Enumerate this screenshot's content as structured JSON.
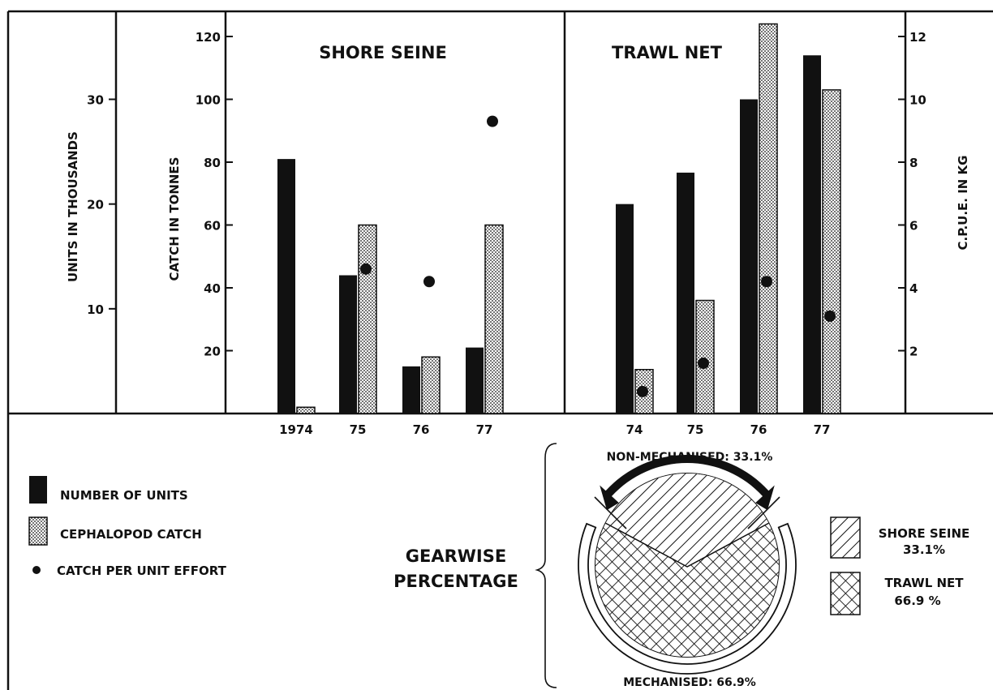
{
  "chart_data": {
    "type": "bar",
    "axes": {
      "units_label": "UNITS IN THOUSANDS",
      "units_ticks": [
        "10",
        "20",
        "30"
      ],
      "catch_label": "CATCH IN TONNES",
      "catch_ticks": [
        "20",
        "40",
        "60",
        "80",
        "100",
        "120"
      ],
      "cpue_label": "C.P.U.E. IN KG",
      "cpue_ticks": [
        "2",
        "4",
        "6",
        "8",
        "10",
        "12"
      ],
      "catch_ylim": [
        0,
        128
      ],
      "units_ylim": [
        0,
        38.4
      ],
      "cpue_ylim": [
        0,
        12.8
      ]
    },
    "panels": [
      {
        "title": "SHORE SEINE",
        "categories": [
          "1974",
          "75",
          "76",
          "77"
        ],
        "series": [
          {
            "name": "NUMBER OF UNITS",
            "unit": "thousands",
            "values": [
              24.3,
              13.2,
              4.5,
              6.3
            ]
          },
          {
            "name": "CEPHALOPOD CATCH",
            "unit": "tonnes",
            "values": [
              2,
              60,
              18,
              60
            ]
          },
          {
            "name": "CATCH PER UNIT EFFORT",
            "unit": "kg",
            "values": [
              null,
              4.6,
              4.2,
              9.3
            ]
          }
        ]
      },
      {
        "title": "TRAWL NET",
        "categories": [
          "74",
          "75",
          "76",
          "77"
        ],
        "series": [
          {
            "name": "NUMBER OF UNITS",
            "unit": "thousands",
            "values": [
              20,
              23,
              30,
              34.2
            ]
          },
          {
            "name": "CEPHALOPOD CATCH",
            "unit": "tonnes",
            "values": [
              14,
              36,
              124,
              103
            ]
          },
          {
            "name": "CATCH PER UNIT EFFORT",
            "unit": "kg",
            "values": [
              0.7,
              1.6,
              4.2,
              3.1
            ]
          }
        ]
      }
    ],
    "legend": [
      {
        "key": "units",
        "label": "NUMBER OF UNITS"
      },
      {
        "key": "catch",
        "label": "CEPHALOPOD CATCH"
      },
      {
        "key": "cpue",
        "label": "CATCH PER UNIT EFFORT"
      }
    ],
    "pie": {
      "title_line1": "GEARWISE",
      "title_line2": "PERCENTAGE",
      "top_label": "NON-MECHANISED: 33.1%",
      "bottom_label": "MECHANISED: 66.9%",
      "slices": [
        {
          "name": "SHORE SEINE",
          "value": 33.1,
          "value_label": "33.1%"
        },
        {
          "name": "TRAWL NET",
          "value": 66.9,
          "value_label": "66.9 %"
        }
      ]
    }
  }
}
